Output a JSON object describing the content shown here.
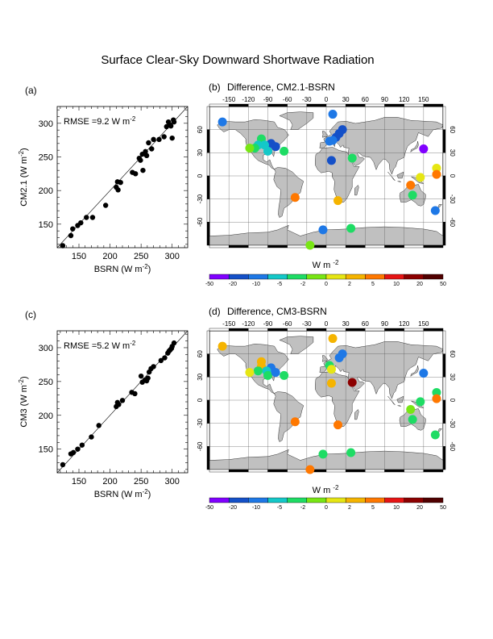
{
  "page_title": "Surface Clear-Sky Downward Shortwave Radiation",
  "colorbar": {
    "unit_label": "W m",
    "unit_exp": "-2",
    "levels": [
      "-50",
      "-20",
      "-10",
      "-5",
      "-2",
      "0",
      "2",
      "5",
      "10",
      "20",
      "50"
    ],
    "colors": [
      "#8000ff",
      "#1450c8",
      "#1e78e6",
      "#14c8c8",
      "#1edc64",
      "#78e614",
      "#e6e614",
      "#f5b400",
      "#ff7800",
      "#e61414",
      "#8c0000",
      "#500000"
    ]
  },
  "map_lon_ticks": [
    "-150",
    "-120",
    "-90",
    "-60",
    "-30",
    "0",
    "30",
    "60",
    "90",
    "120",
    "150"
  ],
  "map_lat_ticks": [
    "60",
    "30",
    "0",
    "-30",
    "-60"
  ],
  "chart_data": [
    {
      "panel_label": "(a)",
      "type": "scatter",
      "xlabel": "BSRN (W m",
      "xlabel_exp": "-2",
      "ylabel": "CM2.1 (W m",
      "ylabel_exp": "-2",
      "annotation": "RMSE =9.2 W m",
      "annotation_exp": "-2",
      "xlim": [
        115,
        325
      ],
      "ylim": [
        115,
        325
      ],
      "xticks": [
        "150",
        "200",
        "250",
        "300"
      ],
      "yticks": [
        "150",
        "200",
        "250",
        "300"
      ],
      "one_to_one_line": true,
      "points": [
        [
          124,
          118
        ],
        [
          137,
          133
        ],
        [
          140,
          143
        ],
        [
          148,
          148
        ],
        [
          153,
          152
        ],
        [
          162,
          160
        ],
        [
          172,
          160
        ],
        [
          193,
          178
        ],
        [
          210,
          205
        ],
        [
          212,
          213
        ],
        [
          213,
          201
        ],
        [
          217,
          212
        ],
        [
          236,
          227
        ],
        [
          241,
          225
        ],
        [
          247,
          248
        ],
        [
          249,
          245
        ],
        [
          252,
          254
        ],
        [
          253,
          230
        ],
        [
          257,
          258
        ],
        [
          259,
          252
        ],
        [
          262,
          271
        ],
        [
          267,
          262
        ],
        [
          270,
          276
        ],
        [
          279,
          276
        ],
        [
          287,
          280
        ],
        [
          291,
          295
        ],
        [
          294,
          302
        ],
        [
          296,
          298
        ],
        [
          298,
          296
        ],
        [
          300,
          278
        ],
        [
          302,
          305
        ],
        [
          303,
          302
        ]
      ]
    },
    {
      "panel_label": "(b)",
      "type": "map",
      "title": "Difference, CM2.1-BSRN",
      "stations": [
        {
          "lon": -160,
          "lat": 70,
          "color": "#1e78e6"
        },
        {
          "lon": 10,
          "lat": 80,
          "color": "#1e78e6"
        },
        {
          "lon": 20,
          "lat": 55,
          "color": "#1450c8"
        },
        {
          "lon": 25,
          "lat": 60,
          "color": "#1450c8"
        },
        {
          "lon": 15,
          "lat": 50,
          "color": "#1450c8"
        },
        {
          "lon": 5,
          "lat": 45,
          "color": "#1e78e6"
        },
        {
          "lon": 10,
          "lat": 46,
          "color": "#1e78e6"
        },
        {
          "lon": 8,
          "lat": 20,
          "color": "#1450c8"
        },
        {
          "lon": 40,
          "lat": 23,
          "color": "#1edc64"
        },
        {
          "lon": -100,
          "lat": 48,
          "color": "#1edc64"
        },
        {
          "lon": -85,
          "lat": 42,
          "color": "#1450c8"
        },
        {
          "lon": -95,
          "lat": 40,
          "color": "#14c8c8"
        },
        {
          "lon": -105,
          "lat": 40,
          "color": "#14c8c8"
        },
        {
          "lon": -110,
          "lat": 36,
          "color": "#1edc64"
        },
        {
          "lon": -118,
          "lat": 36,
          "color": "#78e614"
        },
        {
          "lon": -90,
          "lat": 32,
          "color": "#14c8c8"
        },
        {
          "lon": -78,
          "lat": 38,
          "color": "#1450c8"
        },
        {
          "lon": -65,
          "lat": 32,
          "color": "#1edc64"
        },
        {
          "lon": 150,
          "lat": 35,
          "color": "#8000ff"
        },
        {
          "lon": 170,
          "lat": 10,
          "color": "#e6e614"
        },
        {
          "lon": 170,
          "lat": 2,
          "color": "#ff7800"
        },
        {
          "lon": 145,
          "lat": -2,
          "color": "#e6e614"
        },
        {
          "lon": 130,
          "lat": -12,
          "color": "#ff7800"
        },
        {
          "lon": 133,
          "lat": -25,
          "color": "#1edc64"
        },
        {
          "lon": 168,
          "lat": -45,
          "color": "#1e78e6"
        },
        {
          "lon": -48,
          "lat": -28,
          "color": "#ff7800"
        },
        {
          "lon": 18,
          "lat": -32,
          "color": "#f5b400"
        },
        {
          "lon": -5,
          "lat": -70,
          "color": "#1e78e6"
        },
        {
          "lon": 38,
          "lat": -68,
          "color": "#1edc64"
        },
        {
          "lon": -25,
          "lat": -90,
          "color": "#78e614"
        }
      ]
    },
    {
      "panel_label": "(c)",
      "type": "scatter",
      "xlabel": "BSRN (W m",
      "xlabel_exp": "-2",
      "ylabel": "CM3 (W m",
      "ylabel_exp": "-2",
      "annotation": "RMSE =5.2 W m",
      "annotation_exp": "-2",
      "xlim": [
        115,
        325
      ],
      "ylim": [
        115,
        325
      ],
      "xticks": [
        "150",
        "200",
        "250",
        "300"
      ],
      "yticks": [
        "150",
        "200",
        "250",
        "300"
      ],
      "one_to_one_line": true,
      "points": [
        [
          124,
          127
        ],
        [
          137,
          143
        ],
        [
          141,
          145
        ],
        [
          148,
          150
        ],
        [
          155,
          156
        ],
        [
          170,
          168
        ],
        [
          182,
          185
        ],
        [
          210,
          213
        ],
        [
          212,
          219
        ],
        [
          214,
          216
        ],
        [
          220,
          222
        ],
        [
          235,
          234
        ],
        [
          240,
          232
        ],
        [
          250,
          258
        ],
        [
          252,
          249
        ],
        [
          256,
          252
        ],
        [
          259,
          251
        ],
        [
          261,
          255
        ],
        [
          263,
          264
        ],
        [
          266,
          269
        ],
        [
          270,
          272
        ],
        [
          282,
          281
        ],
        [
          288,
          285
        ],
        [
          293,
          292
        ],
        [
          295,
          295
        ],
        [
          297,
          297
        ],
        [
          299,
          299
        ],
        [
          300,
          302
        ],
        [
          303,
          307
        ]
      ]
    },
    {
      "panel_label": "(d)",
      "type": "map",
      "title": "Difference, CM3-BSRN",
      "stations": [
        {
          "lon": -160,
          "lat": 70,
          "color": "#f5b400"
        },
        {
          "lon": 10,
          "lat": 80,
          "color": "#f5b400"
        },
        {
          "lon": 20,
          "lat": 55,
          "color": "#1e78e6"
        },
        {
          "lon": 25,
          "lat": 60,
          "color": "#1e78e6"
        },
        {
          "lon": 5,
          "lat": 45,
          "color": "#1edc64"
        },
        {
          "lon": 8,
          "lat": 40,
          "color": "#e6e614"
        },
        {
          "lon": 8,
          "lat": 22,
          "color": "#f5b400"
        },
        {
          "lon": 40,
          "lat": 23,
          "color": "#8c0000"
        },
        {
          "lon": -100,
          "lat": 50,
          "color": "#f5b400"
        },
        {
          "lon": -100,
          "lat": 44,
          "color": "#f5b400"
        },
        {
          "lon": -85,
          "lat": 42,
          "color": "#1e78e6"
        },
        {
          "lon": -92,
          "lat": 38,
          "color": "#14c8c8"
        },
        {
          "lon": -105,
          "lat": 38,
          "color": "#1edc64"
        },
        {
          "lon": -118,
          "lat": 36,
          "color": "#e6e614"
        },
        {
          "lon": -90,
          "lat": 32,
          "color": "#1edc64"
        },
        {
          "lon": -78,
          "lat": 36,
          "color": "#1e78e6"
        },
        {
          "lon": -65,
          "lat": 32,
          "color": "#1edc64"
        },
        {
          "lon": 150,
          "lat": 35,
          "color": "#1e78e6"
        },
        {
          "lon": 170,
          "lat": 10,
          "color": "#1edc64"
        },
        {
          "lon": 170,
          "lat": 2,
          "color": "#ff7800"
        },
        {
          "lon": 145,
          "lat": -2,
          "color": "#1edc64"
        },
        {
          "lon": 130,
          "lat": -12,
          "color": "#78e614"
        },
        {
          "lon": 133,
          "lat": -25,
          "color": "#1edc64"
        },
        {
          "lon": 168,
          "lat": -45,
          "color": "#1edc64"
        },
        {
          "lon": -48,
          "lat": -28,
          "color": "#ff7800"
        },
        {
          "lon": 18,
          "lat": -32,
          "color": "#ff7800"
        },
        {
          "lon": -5,
          "lat": -70,
          "color": "#1edc64"
        },
        {
          "lon": 38,
          "lat": -68,
          "color": "#1edc64"
        },
        {
          "lon": -25,
          "lat": -90,
          "color": "#ff7800"
        }
      ]
    }
  ]
}
